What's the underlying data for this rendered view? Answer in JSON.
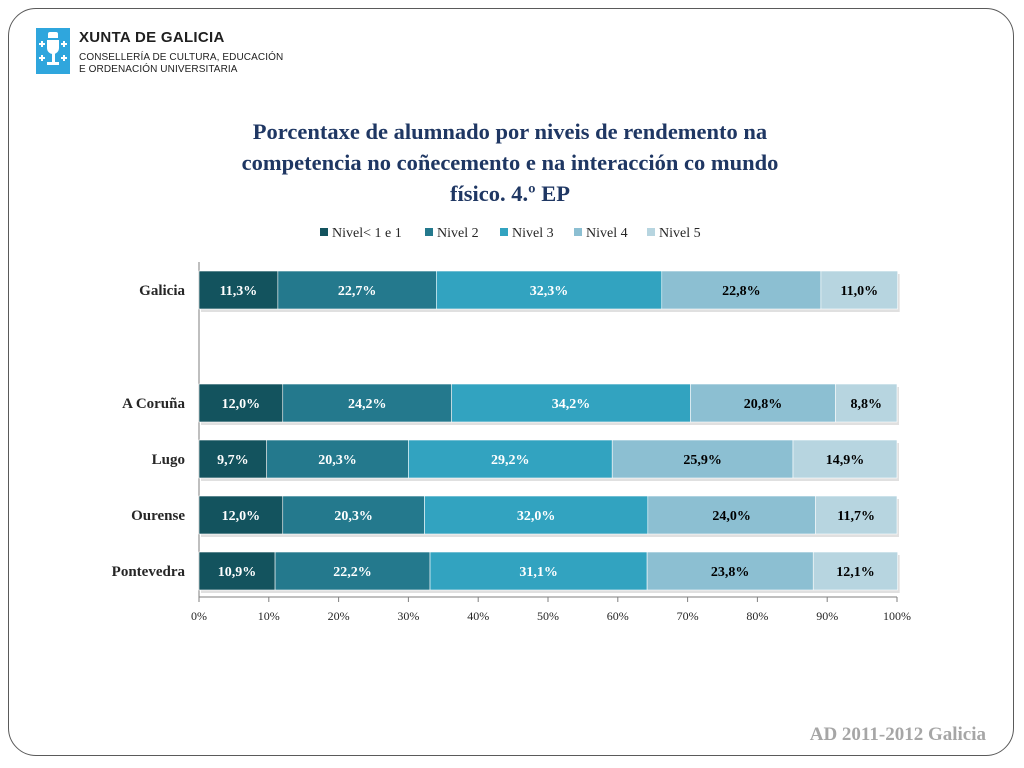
{
  "logo": {
    "name": "XUNTA DE GALICIA",
    "line1": "CONSELLERÍA DE CULTURA, EDUCACIÓN",
    "line2": "E ORDENACIÓN UNIVERSITARIA"
  },
  "footer": "AD 2011-2012 Galicia",
  "chart_data": {
    "type": "bar",
    "orientation": "horizontal",
    "stacked": "percent",
    "title_lines": [
      "Porcentaxe de alumnado por niveis de rendemento na",
      "competencia no coñecemento e na interacción co mundo",
      "físico. 4.º EP"
    ],
    "categories": [
      "Galicia",
      "A Coruña",
      "Lugo",
      "Ourense",
      "Pontevedra"
    ],
    "series": [
      {
        "name": "Nivel< 1 e 1",
        "color": "#13535e",
        "values": [
          11.3,
          12.0,
          9.7,
          12.0,
          10.9
        ],
        "labels": [
          "11,3%",
          "12,0%",
          "9,7%",
          "12,0%",
          "10,9%"
        ]
      },
      {
        "name": "Nivel 2",
        "color": "#24798d",
        "values": [
          22.7,
          24.2,
          20.3,
          20.3,
          22.2
        ],
        "labels": [
          "22,7%",
          "24,2%",
          "20,3%",
          "20,3%",
          "22,2%"
        ]
      },
      {
        "name": "Nivel 3",
        "color": "#32a3c0",
        "values": [
          32.3,
          34.2,
          29.2,
          32.0,
          31.1
        ],
        "labels": [
          "32,3%",
          "34,2%",
          "29,2%",
          "32,0%",
          "31,1%"
        ]
      },
      {
        "name": "Nivel 4",
        "color": "#8cbfd2",
        "values": [
          22.8,
          20.8,
          25.9,
          24.0,
          23.8
        ],
        "labels": [
          "22,8%",
          "20,8%",
          "25,9%",
          "24,0%",
          "23,8%"
        ]
      },
      {
        "name": "Nivel 5",
        "color": "#b7d5e0",
        "values": [
          11.0,
          8.8,
          14.9,
          11.7,
          12.1
        ],
        "labels": [
          "11,0%",
          "8,8%",
          "14,9%",
          "11,7%",
          "12,1%"
        ]
      }
    ],
    "label_colors": [
      "#ffffff",
      "#ffffff",
      "#ffffff",
      "#000000",
      "#000000"
    ],
    "x_ticks": [
      "0%",
      "10%",
      "20%",
      "30%",
      "40%",
      "50%",
      "60%",
      "70%",
      "80%",
      "90%",
      "100%"
    ],
    "xlim": [
      0,
      100
    ],
    "legend_position": "top",
    "grid": false
  }
}
